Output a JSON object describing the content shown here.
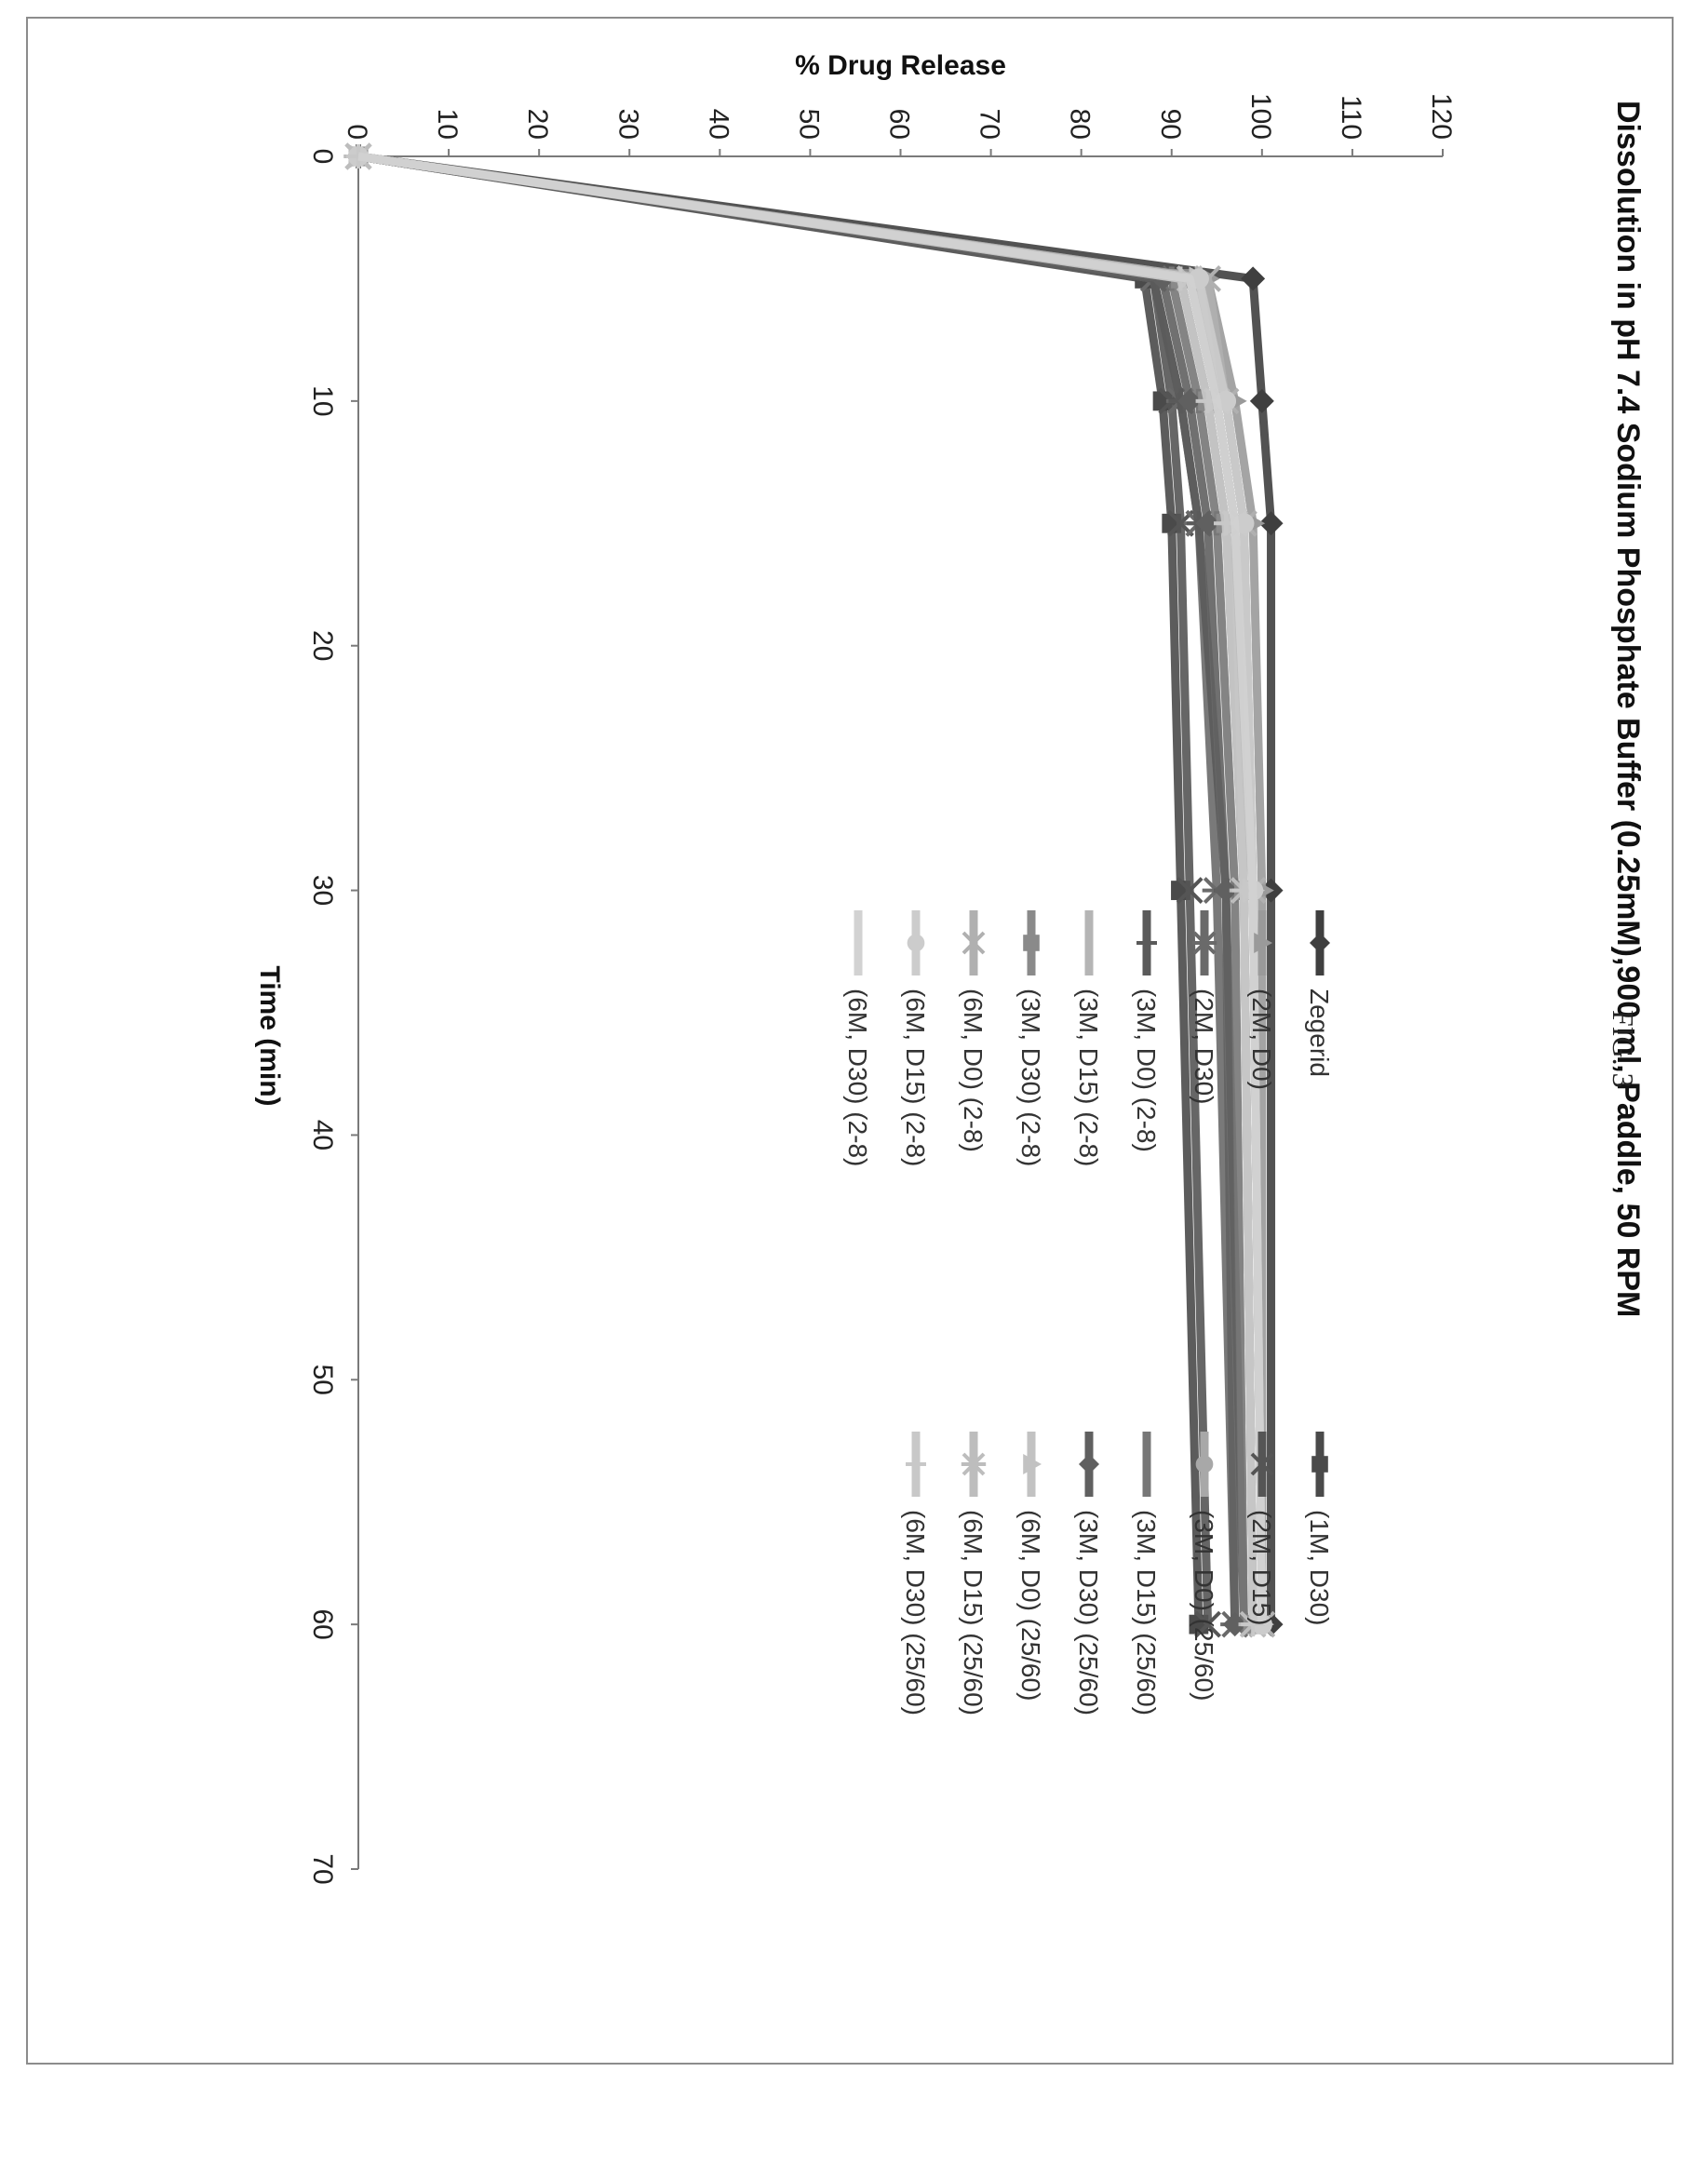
{
  "figure_label": "FIG. 3",
  "chart_data": {
    "type": "line",
    "title": "Dissolution in pH 7.4 Sodium Phosphate Buffer (0.25mM),900 ml, Paddle, 50 RPM",
    "xlabel": "Time (min)",
    "ylabel": "% Drug Release",
    "xlim": [
      0,
      70
    ],
    "ylim": [
      0,
      120
    ],
    "xticks": [
      0,
      10,
      20,
      30,
      40,
      50,
      60,
      70
    ],
    "yticks": [
      0,
      10,
      20,
      30,
      40,
      50,
      60,
      70,
      80,
      90,
      100,
      110,
      120
    ],
    "grid": false,
    "legend_position": "right, two columns",
    "x": [
      0,
      5,
      10,
      15,
      30,
      60
    ],
    "series": [
      {
        "name": "Zegerid",
        "values": [
          0,
          99,
          100,
          101,
          101,
          101
        ],
        "color": "#3f3f3f",
        "marker": "diamond"
      },
      {
        "name": "(1M, D30)",
        "values": [
          0,
          87,
          89,
          90,
          91,
          93
        ],
        "color": "#4a4a4a",
        "marker": "square"
      },
      {
        "name": "(2M, D0)",
        "values": [
          0,
          94,
          97,
          99,
          100,
          100
        ],
        "color": "#9a9a9a",
        "marker": "triangle"
      },
      {
        "name": "(2M, D15)",
        "values": [
          0,
          88,
          90,
          91,
          92,
          94
        ],
        "color": "#555555",
        "marker": "x"
      },
      {
        "name": "(2M, D30)",
        "values": [
          0,
          88,
          91,
          93,
          95,
          97
        ],
        "color": "#6a6a6a",
        "marker": "star"
      },
      {
        "name": "(3M, D0) (25/60)",
        "values": [
          0,
          93,
          96,
          98,
          99,
          100
        ],
        "color": "#a8a8a8",
        "marker": "circle"
      },
      {
        "name": "(3M, D0) (2-8)",
        "values": [
          0,
          88,
          91,
          93,
          96,
          98
        ],
        "color": "#5a5a5a",
        "marker": "plus"
      },
      {
        "name": "(3M, D15) (25/60)",
        "values": [
          0,
          90,
          93,
          95,
          97,
          98
        ],
        "color": "#777777",
        "marker": "dash"
      },
      {
        "name": "(3M, D15) (2-8)",
        "values": [
          0,
          92,
          95,
          97,
          98,
          99
        ],
        "color": "#b5b5b5",
        "marker": "none"
      },
      {
        "name": "(3M, D30) (25/60)",
        "values": [
          0,
          89,
          92,
          94,
          96,
          97
        ],
        "color": "#606060",
        "marker": "diamond"
      },
      {
        "name": "(3M, D30) (2-8)",
        "values": [
          0,
          91,
          94,
          96,
          98,
          99
        ],
        "color": "#8a8a8a",
        "marker": "square"
      },
      {
        "name": "(6M, D0) (25/60)",
        "values": [
          0,
          93,
          95,
          97,
          99,
          100
        ],
        "color": "#c2c2c2",
        "marker": "triangle"
      },
      {
        "name": "(6M, D0) (2-8)",
        "values": [
          0,
          94,
          96,
          98,
          99,
          100
        ],
        "color": "#b0b0b0",
        "marker": "x"
      },
      {
        "name": "(6M, D15) (25/60)",
        "values": [
          0,
          92,
          95,
          97,
          98,
          99
        ],
        "color": "#bdbdbd",
        "marker": "star"
      },
      {
        "name": "(6M, D15) (2-8)",
        "values": [
          0,
          93,
          96,
          98,
          99,
          100
        ],
        "color": "#cccccc",
        "marker": "circle"
      },
      {
        "name": "(6M, D30) (25/60)",
        "values": [
          0,
          91,
          94,
          96,
          98,
          99
        ],
        "color": "#c8c8c8",
        "marker": "plus"
      },
      {
        "name": "(6M, D30) (2-8)",
        "values": [
          0,
          92,
          95,
          97,
          99,
          100
        ],
        "color": "#d2d2d2",
        "marker": "none"
      }
    ]
  }
}
